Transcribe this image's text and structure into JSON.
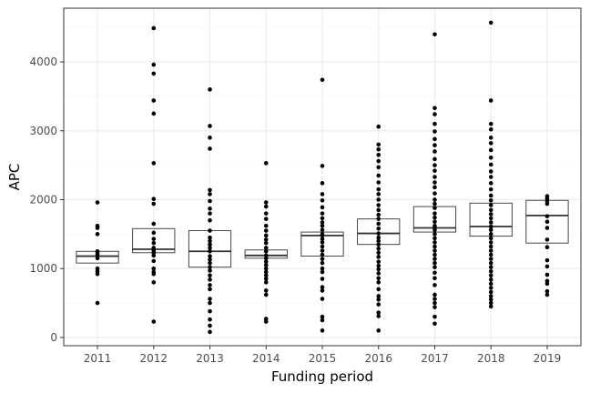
{
  "chart_data": {
    "type": "box",
    "title": "",
    "xlabel": "Funding period",
    "ylabel": "APC",
    "ylim": [
      -120,
      4780
    ],
    "y_ticks": [
      0,
      1000,
      2000,
      3000,
      4000
    ],
    "grid": true,
    "categories": [
      "2011",
      "2012",
      "2013",
      "2014",
      "2015",
      "2016",
      "2017",
      "2018",
      "2019"
    ],
    "boxes": [
      {
        "q1": 1080,
        "median": 1180,
        "q3": 1250,
        "whisker_low": 1080,
        "whisker_high": 1250
      },
      {
        "q1": 1230,
        "median": 1280,
        "q3": 1580,
        "whisker_low": 1230,
        "whisker_high": 1580
      },
      {
        "q1": 1020,
        "median": 1250,
        "q3": 1550,
        "whisker_low": 1020,
        "whisker_high": 1550
      },
      {
        "q1": 1150,
        "median": 1190,
        "q3": 1270,
        "whisker_low": 1150,
        "whisker_high": 1270
      },
      {
        "q1": 1180,
        "median": 1480,
        "q3": 1530,
        "whisker_low": 1180,
        "whisker_high": 1530
      },
      {
        "q1": 1350,
        "median": 1510,
        "q3": 1720,
        "whisker_low": 1350,
        "whisker_high": 1720
      },
      {
        "q1": 1530,
        "median": 1590,
        "q3": 1900,
        "whisker_low": 1530,
        "whisker_high": 1900
      },
      {
        "q1": 1470,
        "median": 1610,
        "q3": 1950,
        "whisker_low": 1470,
        "whisker_high": 1950
      },
      {
        "q1": 1370,
        "median": 1770,
        "q3": 1990,
        "whisker_low": 1370,
        "whisker_high": 1990
      }
    ],
    "points": [
      [
        1960,
        1620,
        1590,
        1500,
        1250,
        1230,
        1200,
        1150,
        1000,
        960,
        920,
        500
      ],
      [
        4490,
        3960,
        3830,
        3440,
        3250,
        2530,
        2010,
        1940,
        1650,
        1520,
        1430,
        1370,
        1300,
        1280,
        1250,
        1230,
        1190,
        1110,
        1000,
        950,
        920,
        800,
        230
      ],
      [
        3600,
        3070,
        2900,
        2740,
        2140,
        2080,
        1980,
        1870,
        1800,
        1700,
        1550,
        1450,
        1400,
        1350,
        1300,
        1250,
        1180,
        1130,
        1080,
        1020,
        970,
        900,
        840,
        760,
        700,
        560,
        500,
        380,
        260,
        170,
        80
      ],
      [
        2530,
        1960,
        1900,
        1800,
        1720,
        1620,
        1550,
        1480,
        1420,
        1370,
        1300,
        1250,
        1190,
        1150,
        1100,
        1050,
        1000,
        950,
        900,
        850,
        800,
        680,
        620,
        270,
        230
      ],
      [
        3740,
        2490,
        2240,
        2080,
        1990,
        1890,
        1800,
        1730,
        1670,
        1620,
        1560,
        1500,
        1480,
        1430,
        1380,
        1320,
        1260,
        1200,
        1140,
        1080,
        1000,
        950,
        850,
        730,
        680,
        560,
        300,
        250,
        100
      ],
      [
        3060,
        2800,
        2730,
        2650,
        2560,
        2470,
        2350,
        2250,
        2150,
        2080,
        2000,
        1920,
        1850,
        1780,
        1720,
        1650,
        1580,
        1510,
        1450,
        1400,
        1350,
        1290,
        1230,
        1170,
        1100,
        1040,
        990,
        930,
        860,
        800,
        700,
        600,
        550,
        480,
        360,
        310,
        100
      ],
      [
        4400,
        3330,
        3240,
        3100,
        2990,
        2880,
        2790,
        2700,
        2590,
        2500,
        2420,
        2330,
        2250,
        2180,
        2090,
        2000,
        1940,
        1880,
        1800,
        1740,
        1680,
        1620,
        1590,
        1560,
        1500,
        1440,
        1380,
        1320,
        1260,
        1200,
        1140,
        1080,
        1020,
        940,
        860,
        760,
        620,
        560,
        500,
        440,
        300,
        200
      ],
      [
        4570,
        3440,
        3100,
        3020,
        2900,
        2820,
        2720,
        2610,
        2510,
        2410,
        2330,
        2240,
        2150,
        2060,
        1990,
        1920,
        1850,
        1790,
        1730,
        1670,
        1610,
        1560,
        1500,
        1440,
        1380,
        1320,
        1260,
        1200,
        1140,
        1080,
        1020,
        960,
        900,
        840,
        780,
        720,
        660,
        600,
        550,
        500,
        450
      ],
      [
        2050,
        2010,
        1980,
        1940,
        1760,
        1680,
        1590,
        1420,
        1310,
        1120,
        1030,
        910,
        820,
        780,
        670,
        620
      ]
    ]
  }
}
